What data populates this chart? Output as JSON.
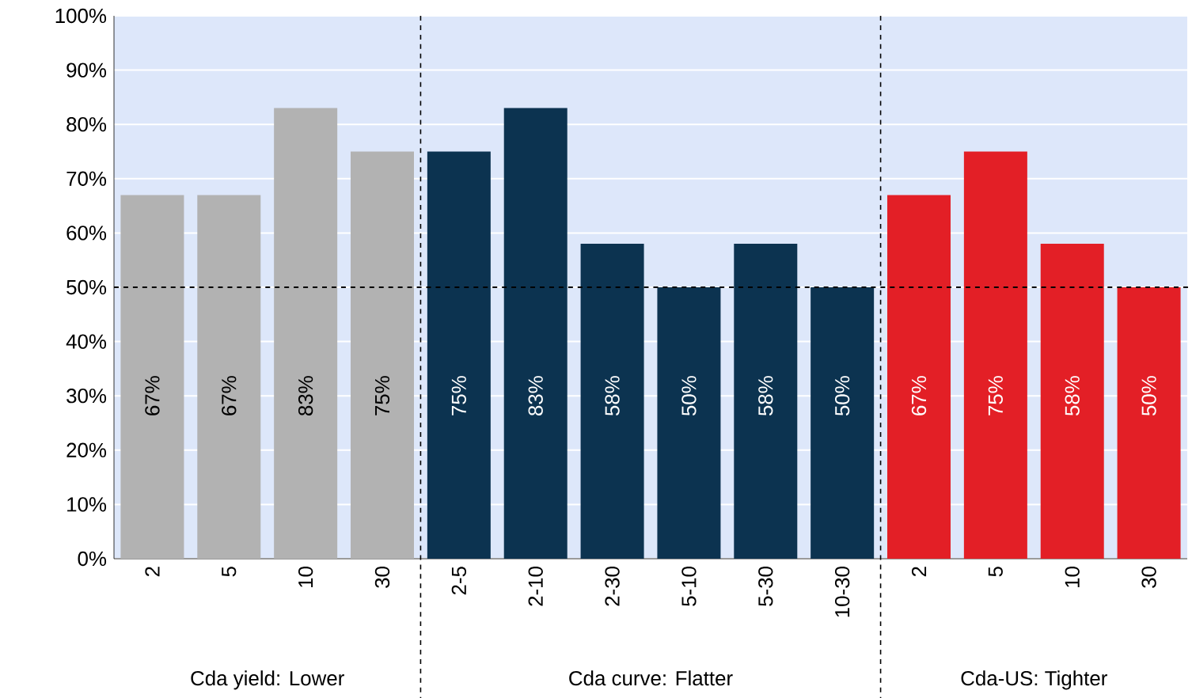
{
  "chart_data": {
    "type": "bar",
    "categories": [
      "2",
      "5",
      "10",
      "30",
      "2-5",
      "2-10",
      "2-30",
      "5-10",
      "5-30",
      "10-30",
      "2",
      "5",
      "10",
      "30"
    ],
    "values": [
      67,
      67,
      83,
      75,
      75,
      83,
      58,
      50,
      58,
      50,
      67,
      75,
      58,
      50
    ],
    "colors": [
      "#b2b2b2",
      "#b2b2b2",
      "#b2b2b2",
      "#b2b2b2",
      "#0c3350",
      "#0c3350",
      "#0c3350",
      "#0c3350",
      "#0c3350",
      "#0c3350",
      "#e31f26",
      "#e31f26",
      "#e31f26",
      "#e31f26"
    ],
    "value_labels": [
      "67%",
      "67%",
      "83%",
      "75%",
      "75%",
      "83%",
      "58%",
      "50%",
      "58%",
      "50%",
      "67%",
      "75%",
      "58%",
      "50%"
    ],
    "ylim": [
      0,
      100
    ],
    "yticks": [
      {
        "value": 0,
        "label": "0%"
      },
      {
        "value": 10,
        "label": "10%"
      },
      {
        "value": 20,
        "label": "20%"
      },
      {
        "value": 30,
        "label": "30%"
      },
      {
        "value": 40,
        "label": "40%"
      },
      {
        "value": 50,
        "label": "50%"
      },
      {
        "value": 60,
        "label": "60%"
      },
      {
        "value": 70,
        "label": "70%"
      },
      {
        "value": 80,
        "label": "80%"
      },
      {
        "value": 90,
        "label": "90%"
      },
      {
        "value": 100,
        "label": "100%"
      }
    ],
    "grid": "y",
    "ref_lines": [
      {
        "axis": "y",
        "value": 50,
        "line_style": "dashed"
      }
    ],
    "annotations": [
      "Cda yield: Lower",
      "Cda curve: Flatter",
      "Cda-US: Tighter"
    ]
  }
}
